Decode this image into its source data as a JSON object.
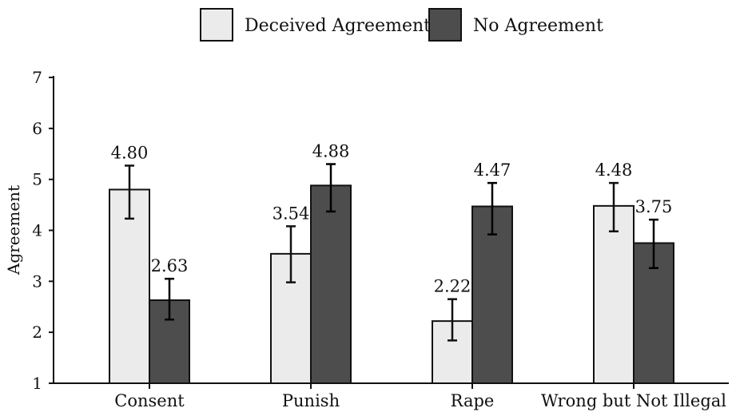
{
  "chart_data": {
    "type": "bar",
    "ylabel": "Agreement",
    "xlabel": "",
    "ylim": [
      1,
      7
    ],
    "yticks": [
      1,
      2,
      3,
      4,
      5,
      6,
      7
    ],
    "grid": false,
    "legend_position": "top-center",
    "categories": [
      "Consent",
      "Punish",
      "Rape",
      "Wrong but Not Illegal"
    ],
    "series": [
      {
        "name": "Deceived Agreement",
        "color": "#ebebeb",
        "values": [
          4.8,
          3.54,
          2.22,
          4.48
        ],
        "labels": [
          "4.80",
          "3.54",
          "2.22",
          "4.48"
        ],
        "error_low": [
          4.23,
          2.98,
          1.84,
          3.98
        ],
        "error_high": [
          5.27,
          4.08,
          2.65,
          4.93
        ]
      },
      {
        "name": "No Agreement",
        "color": "#4d4d4d",
        "values": [
          2.63,
          4.88,
          4.47,
          3.75
        ],
        "labels": [
          "2.63",
          "4.88",
          "4.47",
          "3.75"
        ],
        "error_low": [
          2.25,
          4.37,
          3.92,
          3.26
        ],
        "error_high": [
          3.05,
          5.3,
          4.93,
          4.21
        ]
      }
    ]
  }
}
